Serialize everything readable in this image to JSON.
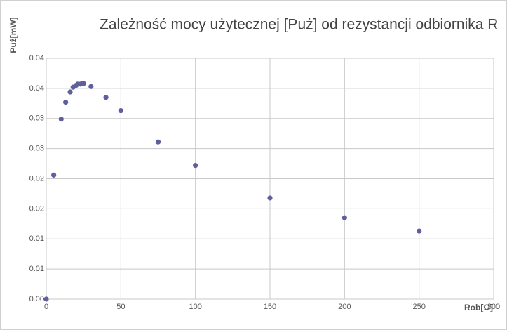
{
  "chart_data": {
    "type": "scatter",
    "title": "Zależność mocy użytecznej [Puż] od rezystancji odbiornika R",
    "x_label": "Rob[Ω]",
    "y_label": "Puż[mW]",
    "series": [
      {
        "name": "Puż",
        "color": "#5f5f9c",
        "x": [
          0,
          5,
          10,
          13,
          16,
          18,
          20,
          21,
          23,
          24,
          25,
          30,
          40,
          50,
          75,
          100,
          150,
          200,
          250
        ],
        "values": [
          0,
          0.0206,
          0.0299,
          0.0327,
          0.0344,
          0.0352,
          0.0355,
          0.0357,
          0.0357,
          0.0358,
          0.0358,
          0.0353,
          0.0335,
          0.0313,
          0.0261,
          0.0222,
          0.0168,
          0.0135,
          0.0113
        ]
      }
    ],
    "xlim": [
      0,
      300
    ],
    "xticks": [
      0,
      50,
      100,
      150,
      200,
      250,
      300
    ],
    "ylim": [
      0,
      0.04
    ],
    "yticks": [
      {
        "value": 0,
        "label": "0.00"
      },
      {
        "value": 0.005,
        "label": "0.01"
      },
      0.01,
      {
        "value": 0.015,
        "label": "0.02"
      },
      0.02,
      {
        "value": 0.025,
        "label": "0.03"
      },
      0.03,
      {
        "value": 0.035,
        "label": "0.04"
      },
      0.04
    ],
    "grid": true
  }
}
